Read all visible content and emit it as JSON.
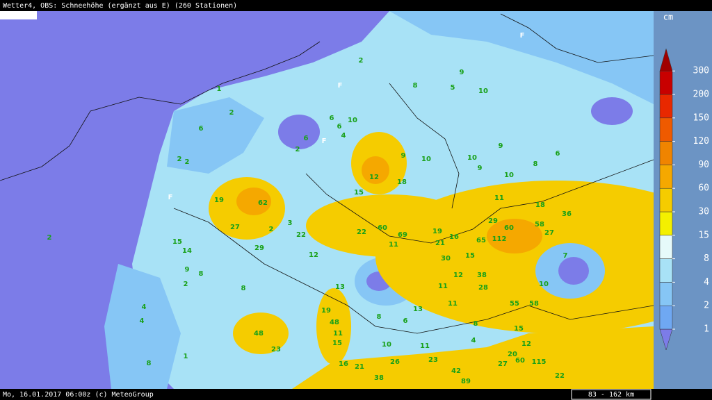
{
  "header": {
    "title": "Wetter4, OBS: Schneehöhe (ergänzt aus E) (260 Stationen)"
  },
  "footer": {
    "timestamp": "Mo, 16.01.2017 06:00z (c) MeteoGroup",
    "scale": "83 - 162 km"
  },
  "legend": {
    "unit": "cm",
    "levels": [
      1,
      2,
      4,
      8,
      15,
      30,
      60,
      90,
      120,
      150,
      200,
      300
    ],
    "colors": [
      "#7c7ce8",
      "#6fa8f2",
      "#86c6f5",
      "#a8e2f6",
      "#e6fafa",
      "#f4f000",
      "#f5cc00",
      "#f5a800",
      "#f08400",
      "#ef5a00",
      "#e82800",
      "#c80000",
      "#a00000"
    ]
  },
  "stations": {
    "values": [
      2,
      8,
      5,
      10,
      9,
      2,
      6,
      1,
      6,
      10,
      6,
      4,
      6,
      2,
      9,
      10,
      12,
      18,
      15,
      19,
      62,
      27,
      2,
      3,
      22,
      15,
      14,
      29,
      22,
      60,
      69,
      19,
      16,
      29,
      60,
      58,
      27,
      65,
      112,
      7,
      10,
      55,
      58,
      11,
      21,
      30,
      15,
      38,
      28,
      12,
      13,
      19,
      48,
      11,
      15,
      48,
      23,
      13,
      11,
      11,
      8,
      6,
      10,
      11,
      23,
      16,
      21,
      26,
      38,
      42,
      89,
      27,
      20,
      60,
      115,
      22,
      15,
      12,
      4,
      8,
      9,
      8,
      6,
      10,
      9,
      10,
      11,
      18,
      36,
      2,
      2,
      2,
      4,
      4,
      8,
      1,
      8,
      2,
      9,
      8,
      12
    ]
  },
  "markers": [
    "F",
    "F",
    "F",
    "F"
  ]
}
